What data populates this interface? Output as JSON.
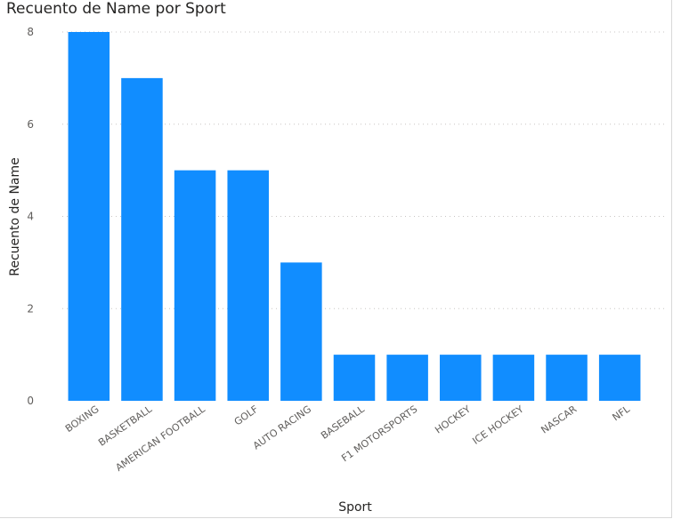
{
  "chart_data": {
    "type": "bar",
    "title": "Recuento de Name por Sport",
    "xlabel": "Sport",
    "ylabel": "Recuento de Name",
    "categories": [
      "BOXING",
      "BASKETBALL",
      "AMERICAN FOOTBALL",
      "GOLF",
      "AUTO RACING",
      "BASEBALL",
      "F1 MOTORSPORTS",
      "HOCKEY",
      "ICE HOCKEY",
      "NASCAR",
      "NFL"
    ],
    "values": [
      8,
      7,
      5,
      5,
      3,
      1,
      1,
      1,
      1,
      1,
      1
    ],
    "ylim": [
      0,
      8
    ],
    "yticks": [
      0,
      2,
      4,
      6,
      8
    ],
    "grid": true,
    "bar_color": "#118DFF",
    "grid_color": "#c8c6c4"
  }
}
